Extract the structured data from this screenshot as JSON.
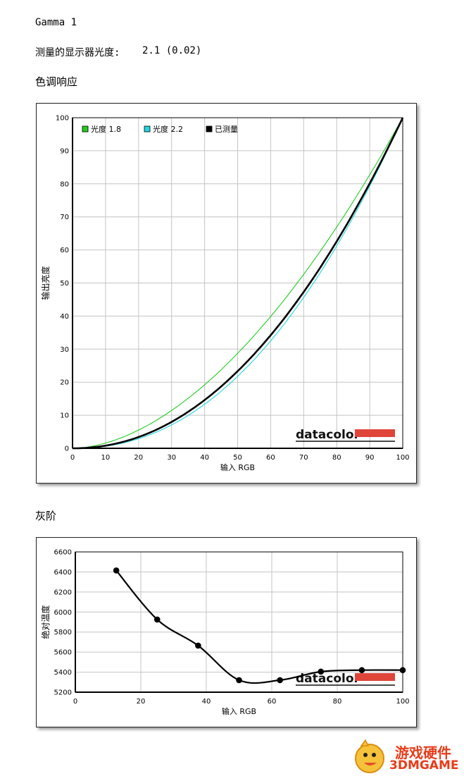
{
  "header": {
    "gamma_title": "Gamma 1",
    "measured_label": "测量的显示器光度:",
    "measured_value": "2.1 (0.02)",
    "section_tone": "色调响应",
    "section_gray": "灰阶"
  },
  "chart_data": [
    {
      "type": "line",
      "xlabel": "输入 RGB",
      "ylabel": "输出亮度",
      "xlim": [
        0,
        100
      ],
      "ylim": [
        0,
        100
      ],
      "xticks": [
        0,
        10,
        20,
        30,
        40,
        50,
        60,
        70,
        80,
        90,
        100
      ],
      "yticks": [
        0,
        10,
        20,
        30,
        40,
        50,
        60,
        70,
        80,
        90,
        100
      ],
      "grid": true,
      "legend_position": "top-left",
      "brand": "datacolor",
      "series": [
        {
          "name": "光度 1.8",
          "color": "#22cc22",
          "gamma": 1.8,
          "x": [
            0,
            10,
            20,
            30,
            40,
            50,
            60,
            70,
            80,
            90,
            100
          ],
          "y": [
            0,
            1.6,
            5.5,
            11.5,
            19.2,
            28.7,
            39.9,
            52.6,
            66.9,
            82.7,
            100
          ]
        },
        {
          "name": "光度 2.2",
          "color": "#22d4e0",
          "gamma": 2.2,
          "x": [
            0,
            10,
            20,
            30,
            40,
            50,
            60,
            70,
            80,
            90,
            100
          ],
          "y": [
            0,
            0.6,
            2.9,
            7.1,
            13.3,
            21.8,
            32.5,
            45.6,
            61.2,
            79.3,
            100
          ]
        },
        {
          "name": "已测量",
          "color": "#000000",
          "gamma": 2.1,
          "x": [
            0,
            10,
            20,
            30,
            40,
            50,
            60,
            70,
            80,
            90,
            100
          ],
          "y": [
            0,
            1.2,
            3.5,
            8.2,
            14.8,
            23.7,
            34.5,
            47.5,
            62.6,
            80.0,
            100
          ]
        }
      ]
    },
    {
      "type": "line",
      "xlabel": "输入 RGB",
      "ylabel": "绝对温度",
      "xlim": [
        0,
        100
      ],
      "ylim": [
        5200,
        6600
      ],
      "xticks": [
        0,
        20,
        40,
        60,
        80,
        100
      ],
      "yticks": [
        5200,
        5400,
        5600,
        5800,
        6000,
        6200,
        6400,
        6600
      ],
      "grid": true,
      "brand": "datacolor",
      "series": [
        {
          "color": "#000000",
          "x": [
            12.5,
            25,
            37.5,
            50,
            62.5,
            75,
            87.5,
            100
          ],
          "y": [
            6415,
            5925,
            5665,
            5320,
            5320,
            5405,
            5420,
            5420
          ]
        }
      ]
    }
  ],
  "watermark": {
    "line1": "游戏硬件",
    "line2": "3DMGAME"
  }
}
